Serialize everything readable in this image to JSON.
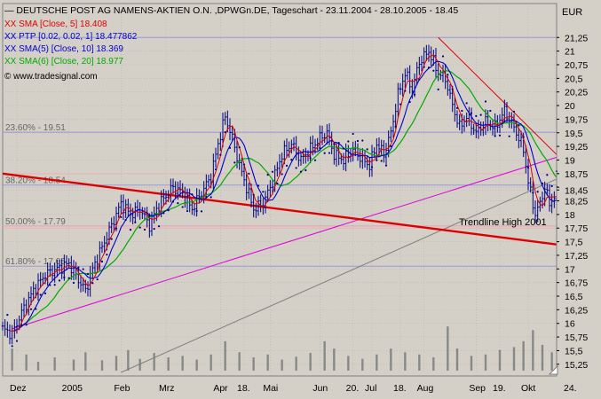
{
  "chart_data": {
    "type": "line",
    "title": "DEUTSCHE POST AG NAMENS-AKTIEN O.N. ,DPWGn.DE, Tageschart - 23.11.2004 - 28.10.2005 - 18.45",
    "currency": "EUR",
    "copyright": "www.tradesignal.com",
    "ylim": [
      15.1,
      21.45
    ],
    "yticks": [
      15.25,
      15.5,
      15.75,
      16,
      16.25,
      16.5,
      16.75,
      17,
      17.25,
      17.5,
      17.75,
      18,
      18.25,
      18.45,
      18.5,
      18.75,
      19,
      19.25,
      19.5,
      19.75,
      20,
      20.25,
      20.5,
      20.75,
      21,
      21.25
    ],
    "ytick_labels": [
      "15,25",
      "15,5",
      "15,75",
      "16",
      "16,25",
      "16,5",
      "16,75",
      "17",
      "17,25",
      "17,5",
      "17,75",
      "18",
      "18,25",
      "18,45",
      "",
      "18,75",
      "19",
      "19,25",
      "19,5",
      "19,75",
      "20",
      "20,25",
      "20,5",
      "20,75",
      "21",
      "21,25"
    ],
    "xlim": [
      0,
      234
    ],
    "xticks": [
      {
        "x": 6,
        "label": "Dez"
      },
      {
        "x": 28,
        "label": "2005"
      },
      {
        "x": 50,
        "label": "Feb"
      },
      {
        "x": 69,
        "label": "Mrz"
      },
      {
        "x": 92,
        "label": "Apr"
      },
      {
        "x": 102,
        "label": "18."
      },
      {
        "x": 113,
        "label": "Mai"
      },
      {
        "x": 134,
        "label": "Jun"
      },
      {
        "x": 148,
        "label": "20."
      },
      {
        "x": 156,
        "label": "Jul"
      },
      {
        "x": 168,
        "label": "18."
      },
      {
        "x": 178,
        "label": "Aug"
      },
      {
        "x": 200,
        "label": "Sep"
      },
      {
        "x": 210,
        "label": "19."
      },
      {
        "x": 222,
        "label": "Okt"
      },
      {
        "x": 240,
        "label": "24."
      }
    ],
    "legend": [
      {
        "text": "XX SMA [Close, 5] 18.408",
        "color": "#dd0000"
      },
      {
        "text": "XX PTP [0.02, 0.02, 1] 18.477862",
        "color": "#0000cc"
      },
      {
        "text": "XX SMA(5) [Close, 10] 18.369",
        "color": "#0000cc"
      },
      {
        "text": "XX SMA(6) [Close, 20] 18.977",
        "color": "#00aa00"
      }
    ],
    "fib_levels": [
      {
        "label": "23.60% - 19.51",
        "value": 19.51
      },
      {
        "label": "38.20% - 18.54",
        "value": 18.54
      },
      {
        "label": "50.00% - 17.79",
        "value": 17.79
      },
      {
        "label": "61.80% - 17.05",
        "value": 17.05
      }
    ],
    "horizontal_lines": [
      21.25,
      18.75,
      17.79,
      17.75
    ],
    "trendline": {
      "label": "Trendline High 2001",
      "from": [
        0,
        18.75
      ],
      "to": [
        234,
        17.45
      ],
      "color": "#dd0000"
    },
    "support_lines": [
      {
        "from": [
          4,
          15.9
        ],
        "to": [
          234,
          19.05
        ],
        "color": "#dd00dd"
      },
      {
        "from": [
          50,
          15.1
        ],
        "to": [
          234,
          18.65
        ],
        "color": "#808080"
      },
      {
        "from": [
          184,
          21.25
        ],
        "to": [
          234,
          19.1
        ],
        "color": "#dd0000"
      }
    ],
    "anchors": [
      [
        0,
        15.9
      ],
      [
        4,
        15.8
      ],
      [
        8,
        16.2
      ],
      [
        13,
        16.6
      ],
      [
        18,
        16.9
      ],
      [
        23,
        17.0
      ],
      [
        28,
        17.1
      ],
      [
        32,
        16.8
      ],
      [
        35,
        16.6
      ],
      [
        38,
        17.0
      ],
      [
        42,
        17.4
      ],
      [
        46,
        17.8
      ],
      [
        50,
        18.2
      ],
      [
        54,
        18.0
      ],
      [
        58,
        18.1
      ],
      [
        62,
        17.8
      ],
      [
        65,
        18.1
      ],
      [
        68,
        18.3
      ],
      [
        72,
        18.5
      ],
      [
        76,
        18.4
      ],
      [
        80,
        18.1
      ],
      [
        84,
        18.4
      ],
      [
        88,
        18.7
      ],
      [
        91,
        19.3
      ],
      [
        94,
        19.8
      ],
      [
        97,
        19.4
      ],
      [
        100,
        18.9
      ],
      [
        103,
        18.5
      ],
      [
        106,
        18.1
      ],
      [
        110,
        18.2
      ],
      [
        114,
        18.6
      ],
      [
        118,
        19.1
      ],
      [
        122,
        19.3
      ],
      [
        126,
        19.0
      ],
      [
        130,
        19.2
      ],
      [
        134,
        19.4
      ],
      [
        137,
        19.5
      ],
      [
        140,
        19.1
      ],
      [
        144,
        19.0
      ],
      [
        148,
        19.2
      ],
      [
        152,
        19.0
      ],
      [
        155,
        18.9
      ],
      [
        158,
        19.3
      ],
      [
        161,
        19.1
      ],
      [
        164,
        19.5
      ],
      [
        167,
        20.2
      ],
      [
        170,
        20.6
      ],
      [
        173,
        20.3
      ],
      [
        176,
        20.8
      ],
      [
        180,
        21.0
      ],
      [
        184,
        20.6
      ],
      [
        187,
        20.5
      ],
      [
        190,
        20.0
      ],
      [
        193,
        19.6
      ],
      [
        196,
        19.8
      ],
      [
        200,
        19.5
      ],
      [
        204,
        19.7
      ],
      [
        208,
        19.6
      ],
      [
        212,
        19.9
      ],
      [
        216,
        19.6
      ],
      [
        220,
        19.2
      ],
      [
        222,
        18.6
      ],
      [
        225,
        18.0
      ],
      [
        227,
        18.2
      ],
      [
        229,
        18.5
      ],
      [
        231,
        18.2
      ],
      [
        234,
        18.4
      ]
    ],
    "volume": [
      {
        "x": 4,
        "h": 0.3
      },
      {
        "x": 10,
        "h": 0.22
      },
      {
        "x": 15,
        "h": 0.12
      },
      {
        "x": 22,
        "h": 0.18
      },
      {
        "x": 30,
        "h": 0.15
      },
      {
        "x": 35,
        "h": 0.25
      },
      {
        "x": 42,
        "h": 0.14
      },
      {
        "x": 48,
        "h": 0.2
      },
      {
        "x": 53,
        "h": 0.28
      },
      {
        "x": 58,
        "h": 0.16
      },
      {
        "x": 64,
        "h": 0.24
      },
      {
        "x": 70,
        "h": 0.18
      },
      {
        "x": 76,
        "h": 0.2
      },
      {
        "x": 82,
        "h": 0.15
      },
      {
        "x": 88,
        "h": 0.22
      },
      {
        "x": 94,
        "h": 0.4
      },
      {
        "x": 100,
        "h": 0.25
      },
      {
        "x": 106,
        "h": 0.18
      },
      {
        "x": 112,
        "h": 0.22
      },
      {
        "x": 118,
        "h": 0.15
      },
      {
        "x": 124,
        "h": 0.19
      },
      {
        "x": 130,
        "h": 0.24
      },
      {
        "x": 136,
        "h": 0.4
      },
      {
        "x": 140,
        "h": 0.3
      },
      {
        "x": 146,
        "h": 0.2
      },
      {
        "x": 152,
        "h": 0.16
      },
      {
        "x": 158,
        "h": 0.22
      },
      {
        "x": 164,
        "h": 0.3
      },
      {
        "x": 170,
        "h": 0.25
      },
      {
        "x": 176,
        "h": 0.22
      },
      {
        "x": 182,
        "h": 0.18
      },
      {
        "x": 188,
        "h": 0.6
      },
      {
        "x": 192,
        "h": 0.3
      },
      {
        "x": 198,
        "h": 0.2
      },
      {
        "x": 204,
        "h": 0.22
      },
      {
        "x": 210,
        "h": 0.28
      },
      {
        "x": 216,
        "h": 0.32
      },
      {
        "x": 220,
        "h": 0.4
      },
      {
        "x": 224,
        "h": 0.55
      },
      {
        "x": 228,
        "h": 0.35
      },
      {
        "x": 232,
        "h": 0.25
      }
    ],
    "colors": {
      "bg": "#d4d0c8",
      "bars": "#000080",
      "grid": "#b8b4ac",
      "fib": "#9898d8",
      "hline": "#f0b0b0",
      "sma5": "#dd0000",
      "sma10": "#0000cc",
      "sma20": "#00aa00",
      "ptp": "#000080",
      "volume": "#888888"
    }
  }
}
